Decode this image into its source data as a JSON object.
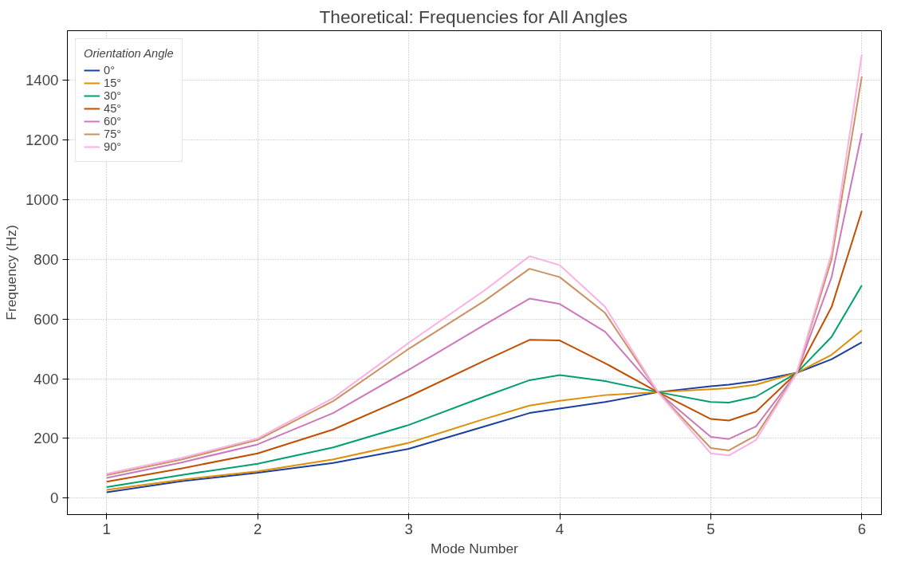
{
  "chart_data": {
    "type": "line",
    "title": "Theoretical: Frequencies for All Angles",
    "xlabel": "Mode Number",
    "ylabel": "Frequency (Hz)",
    "legend_title": "Orientation Angle",
    "x": [
      1,
      1.5,
      2,
      2.5,
      3,
      3.5,
      3.8,
      4,
      4.3,
      4.65,
      5,
      5.12,
      5.3,
      5.57,
      5.8,
      6
    ],
    "series": [
      {
        "name": "0°",
        "color": "#1a3fa0",
        "values": [
          20,
          57,
          85,
          118,
          165,
          240,
          285,
          300,
          322,
          355,
          375,
          380,
          392,
          420,
          465,
          522
        ]
      },
      {
        "name": "15°",
        "color": "#de8f05",
        "values": [
          28,
          62,
          90,
          130,
          185,
          265,
          310,
          326,
          345,
          355,
          365,
          368,
          380,
          420,
          480,
          562
        ]
      },
      {
        "name": "30°",
        "color": "#029e73",
        "values": [
          37,
          78,
          115,
          170,
          245,
          340,
          395,
          412,
          392,
          355,
          322,
          320,
          340,
          420,
          540,
          712
        ]
      },
      {
        "name": "45°",
        "color": "#c04f00",
        "values": [
          55,
          100,
          150,
          230,
          340,
          460,
          530,
          528,
          452,
          355,
          265,
          260,
          290,
          420,
          640,
          962
        ]
      },
      {
        "name": "60°",
        "color": "#cc78bc",
        "values": [
          68,
          120,
          180,
          285,
          430,
          580,
          668,
          650,
          557,
          355,
          205,
          198,
          240,
          420,
          740,
          1222
        ]
      },
      {
        "name": "75°",
        "color": "#ca9161",
        "values": [
          77,
          130,
          195,
          325,
          500,
          660,
          768,
          740,
          620,
          355,
          168,
          160,
          210,
          420,
          800,
          1412
        ]
      },
      {
        "name": "90°",
        "color": "#fbafe4",
        "values": [
          82,
          135,
          200,
          335,
          520,
          695,
          810,
          780,
          641,
          355,
          150,
          143,
          195,
          420,
          820,
          1485
        ]
      }
    ],
    "xlim": [
      0.74,
      6.13
    ],
    "ylim": [
      -55,
      1565
    ],
    "xticks": [
      1,
      2,
      3,
      4,
      5,
      6
    ],
    "yticks": [
      0,
      200,
      400,
      600,
      800,
      1000,
      1200,
      1400
    ],
    "grid": true,
    "legend": "top left",
    "line_style": "solid",
    "marker": "none"
  }
}
